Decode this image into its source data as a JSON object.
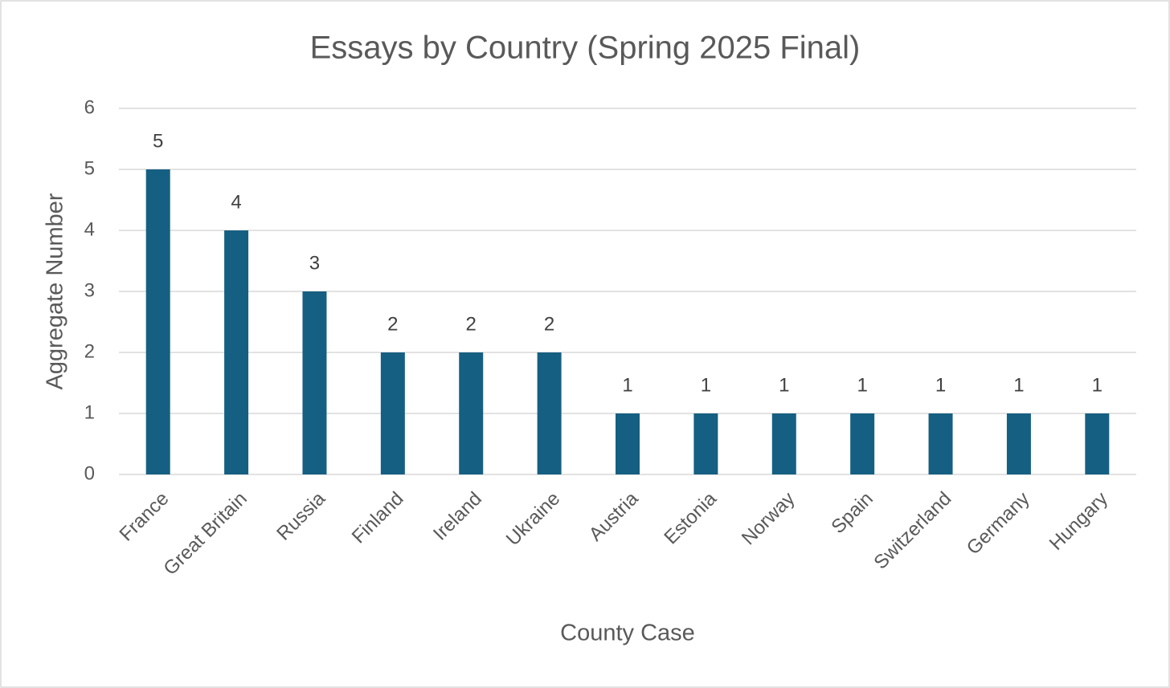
{
  "chart_data": {
    "type": "bar",
    "title": "Essays by Country (Spring 2025 Final)",
    "x_label": "County Case",
    "y_label": "Aggregate Number",
    "categories": [
      "France",
      "Great Britain",
      "Russia",
      "Finland",
      "Ireland",
      "Ukraine",
      "Austria",
      "Estonia",
      "Norway",
      "Spain",
      "Switzerland",
      "Germany",
      "Hungary"
    ],
    "values": [
      5,
      4,
      3,
      2,
      2,
      2,
      1,
      1,
      1,
      1,
      1,
      1,
      1
    ],
    "color": "#156082",
    "ylim": [
      0,
      6
    ],
    "yticks": [
      0,
      1,
      2,
      3,
      4,
      5,
      6
    ],
    "grid": true
  }
}
